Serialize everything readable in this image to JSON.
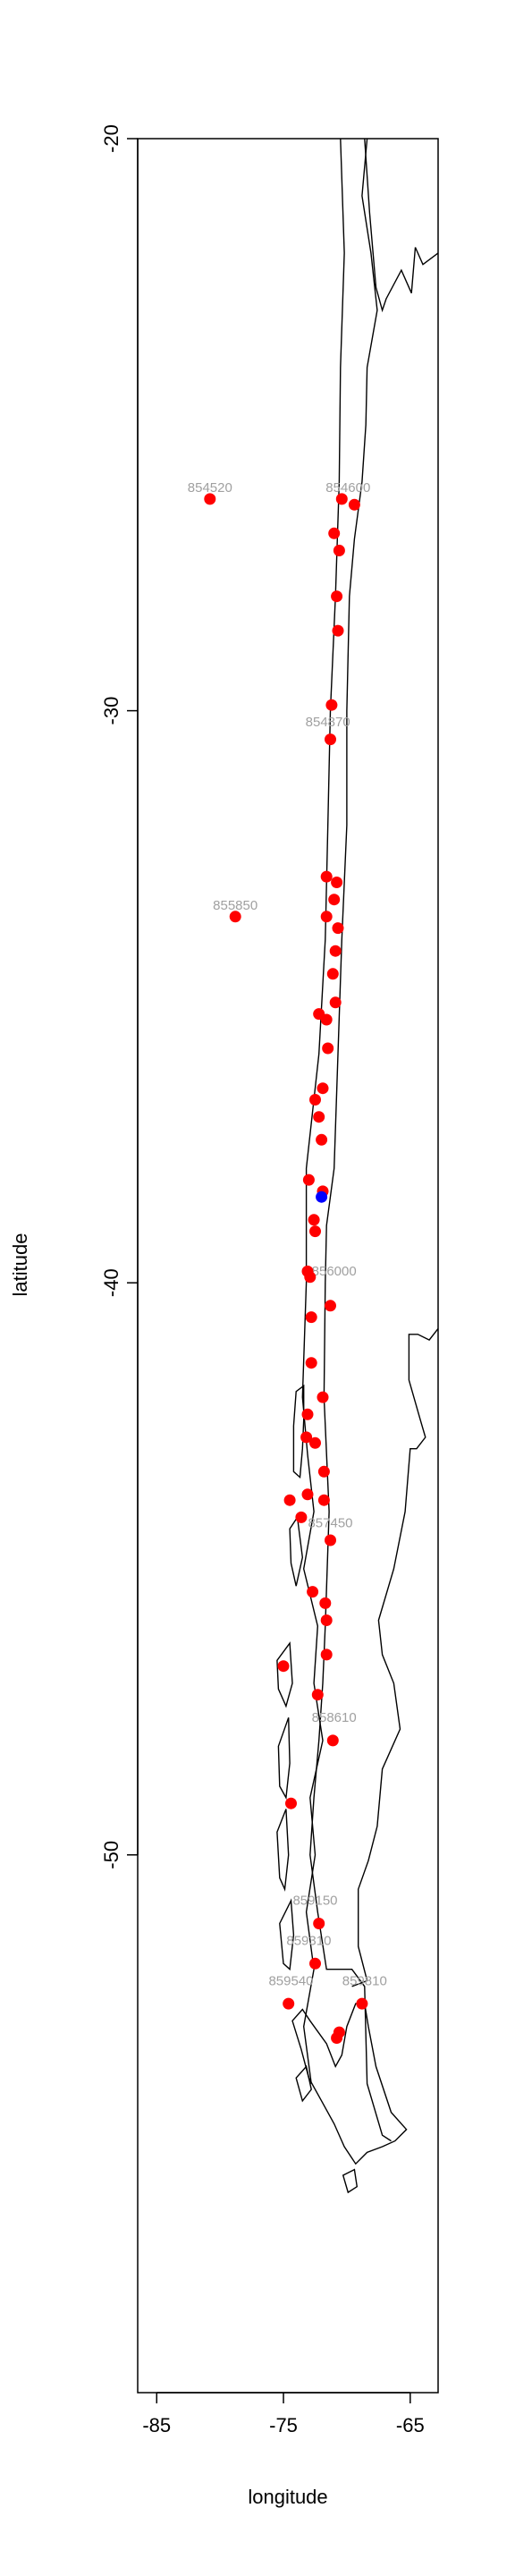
{
  "chart_data": {
    "type": "scatter",
    "title": "",
    "xlabel": "longitude",
    "ylabel": "latitude",
    "xlim": [
      -86.5,
      -62.8
    ],
    "ylim": [
      -59.4,
      -20
    ],
    "xticks": [
      -85,
      -75,
      -65
    ],
    "yticks": [
      -20,
      -30,
      -40,
      -50
    ],
    "grid": false,
    "legend": "none",
    "colors": {
      "station": "#ff0000",
      "highlight": "#0000ff",
      "label": "#a0a0a0",
      "outline": "#000000"
    },
    "labeled_stations": [
      {
        "x": -80.8,
        "y": -26.3,
        "label": "854520"
      },
      {
        "x": -69.9,
        "y": -26.3,
        "label": "854600"
      },
      {
        "x": -78.8,
        "y": -33.6,
        "label": "855850"
      },
      {
        "x": -71.5,
        "y": -30.4,
        "label": "854870"
      },
      {
        "x": -71.0,
        "y": -40.0,
        "label": "856000"
      },
      {
        "x": -71.3,
        "y": -44.4,
        "label": "857450"
      },
      {
        "x": -71.0,
        "y": -47.8,
        "label": "858610"
      },
      {
        "x": -72.5,
        "y": -51.0,
        "label": "859150"
      },
      {
        "x": -73.0,
        "y": -51.7,
        "label": "859310"
      },
      {
        "x": -74.4,
        "y": -52.4,
        "label": "859540"
      },
      {
        "x": -68.6,
        "y": -52.4,
        "label": "859810"
      }
    ],
    "stations": [
      {
        "x": -80.8,
        "y": -26.3
      },
      {
        "x": -70.4,
        "y": -26.3
      },
      {
        "x": -69.4,
        "y": -26.4
      },
      {
        "x": -71.0,
        "y": -26.9
      },
      {
        "x": -70.6,
        "y": -27.2
      },
      {
        "x": -70.8,
        "y": -28.0
      },
      {
        "x": -70.7,
        "y": -28.6
      },
      {
        "x": -71.2,
        "y": -29.9
      },
      {
        "x": -71.3,
        "y": -30.5
      },
      {
        "x": -71.6,
        "y": -32.9
      },
      {
        "x": -70.8,
        "y": -33.0
      },
      {
        "x": -71.0,
        "y": -33.3
      },
      {
        "x": -78.8,
        "y": -33.6
      },
      {
        "x": -71.6,
        "y": -33.6
      },
      {
        "x": -70.7,
        "y": -33.8
      },
      {
        "x": -70.9,
        "y": -34.2
      },
      {
        "x": -71.1,
        "y": -34.6
      },
      {
        "x": -70.9,
        "y": -35.1
      },
      {
        "x": -72.2,
        "y": -35.3
      },
      {
        "x": -71.6,
        "y": -35.4
      },
      {
        "x": -71.5,
        "y": -35.9
      },
      {
        "x": -71.9,
        "y": -36.6
      },
      {
        "x": -72.5,
        "y": -36.8
      },
      {
        "x": -72.2,
        "y": -37.1
      },
      {
        "x": -72.0,
        "y": -37.5
      },
      {
        "x": -73.0,
        "y": -38.2
      },
      {
        "x": -71.9,
        "y": -38.4
      },
      {
        "x": -72.6,
        "y": -38.9
      },
      {
        "x": -72.5,
        "y": -39.1
      },
      {
        "x": -73.1,
        "y": -39.8
      },
      {
        "x": -72.9,
        "y": -39.9
      },
      {
        "x": -72.8,
        "y": -40.6
      },
      {
        "x": -71.3,
        "y": -40.4
      },
      {
        "x": -72.8,
        "y": -41.4
      },
      {
        "x": -71.9,
        "y": -42.0
      },
      {
        "x": -73.1,
        "y": -42.3
      },
      {
        "x": -73.2,
        "y": -42.7
      },
      {
        "x": -72.5,
        "y": -42.8
      },
      {
        "x": -71.8,
        "y": -43.3
      },
      {
        "x": -73.1,
        "y": -43.7
      },
      {
        "x": -71.8,
        "y": -43.8
      },
      {
        "x": -74.5,
        "y": -43.8
      },
      {
        "x": -73.6,
        "y": -44.1
      },
      {
        "x": -71.3,
        "y": -44.5
      },
      {
        "x": -72.7,
        "y": -45.4
      },
      {
        "x": -71.7,
        "y": -45.6
      },
      {
        "x": -71.6,
        "y": -45.9
      },
      {
        "x": -75.0,
        "y": -46.7
      },
      {
        "x": -71.6,
        "y": -46.5
      },
      {
        "x": -72.3,
        "y": -47.2
      },
      {
        "x": -71.1,
        "y": -48.0
      },
      {
        "x": -74.4,
        "y": -49.1
      },
      {
        "x": -72.2,
        "y": -51.2
      },
      {
        "x": -72.5,
        "y": -51.9
      },
      {
        "x": -74.6,
        "y": -52.6
      },
      {
        "x": -68.8,
        "y": -52.6
      },
      {
        "x": -70.8,
        "y": -53.2
      },
      {
        "x": -70.6,
        "y": -53.1
      }
    ],
    "highlight": [
      {
        "x": -72.0,
        "y": -38.5
      }
    ],
    "basemap": {
      "border_west": [
        [
          -70.5,
          -20
        ],
        [
          -70.2,
          -22
        ],
        [
          -70.5,
          -24
        ],
        [
          -70.6,
          -26
        ],
        [
          -70.9,
          -28
        ],
        [
          -71.3,
          -30
        ],
        [
          -71.5,
          -32
        ],
        [
          -71.7,
          -34
        ],
        [
          -72.2,
          -36
        ],
        [
          -73.2,
          -38
        ],
        [
          -73.2,
          -40
        ],
        [
          -73.5,
          -42
        ],
        [
          -73.1,
          -43
        ],
        [
          -72.6,
          -44
        ],
        [
          -73.4,
          -45
        ],
        [
          -72.3,
          -46
        ],
        [
          -72.6,
          -47
        ],
        [
          -71.9,
          -48
        ],
        [
          -72.9,
          -49
        ],
        [
          -72.5,
          -50
        ],
        [
          -73.2,
          -51
        ],
        [
          -72.6,
          -52
        ],
        [
          -73.4,
          -53
        ],
        [
          -72.8,
          -54
        ]
      ],
      "border_east": [
        [
          -68.4,
          -20
        ],
        [
          -68.8,
          -21
        ],
        [
          -68.1,
          -22
        ],
        [
          -67.6,
          -23
        ],
        [
          -68.4,
          -24
        ],
        [
          -68.5,
          -25
        ],
        [
          -68.8,
          -26
        ],
        [
          -69.4,
          -27
        ],
        [
          -69.8,
          -28
        ],
        [
          -70.0,
          -30
        ],
        [
          -70.0,
          -32
        ],
        [
          -70.2,
          -33
        ],
        [
          -70.4,
          -34
        ],
        [
          -70.7,
          -36
        ],
        [
          -71.0,
          -38
        ],
        [
          -71.6,
          -39
        ],
        [
          -71.7,
          -40
        ],
        [
          -71.8,
          -42
        ],
        [
          -71.4,
          -44
        ],
        [
          -71.7,
          -46
        ],
        [
          -71.9,
          -47
        ],
        [
          -72.2,
          -48
        ],
        [
          -72.6,
          -49
        ],
        [
          -72.9,
          -50
        ],
        [
          -72.3,
          -51
        ],
        [
          -71.6,
          -52
        ],
        [
          -69.6,
          -52
        ],
        [
          -68.6,
          -52.3
        ],
        [
          -68.4,
          -54
        ],
        [
          -67.2,
          -54.9
        ],
        [
          -66.5,
          -55
        ]
      ],
      "argentina_coast": [
        [
          -62.8,
          -22
        ],
        [
          -64,
          -22.2
        ],
        [
          -64.6,
          -21.9
        ],
        [
          -64.9,
          -22.7
        ],
        [
          -65.7,
          -22.3
        ],
        [
          -66.9,
          -22.8
        ],
        [
          -67.2,
          -23
        ],
        [
          -67.7,
          -22.6
        ],
        [
          -68.2,
          -21.3
        ],
        [
          -68.6,
          -20
        ]
      ],
      "patagonia_coast": [
        [
          -62.8,
          -40.8
        ],
        [
          -63.5,
          -41
        ],
        [
          -64.4,
          -40.9
        ],
        [
          -65.1,
          -40.9
        ],
        [
          -65.1,
          -41.7
        ],
        [
          -64.2,
          -42.4
        ],
        [
          -63.8,
          -42.7
        ],
        [
          -64.5,
          -42.9
        ],
        [
          -65.0,
          -42.9
        ],
        [
          -65.4,
          -44.0
        ],
        [
          -66.3,
          -45
        ],
        [
          -67.5,
          -45.9
        ],
        [
          -67.2,
          -46.5
        ],
        [
          -66.3,
          -47
        ],
        [
          -65.8,
          -47.8
        ],
        [
          -67.2,
          -48.5
        ],
        [
          -67.6,
          -49.5
        ],
        [
          -68.3,
          -50.1
        ],
        [
          -69.1,
          -50.6
        ],
        [
          -69.1,
          -51.6
        ],
        [
          -68.4,
          -52.2
        ],
        [
          -69.6,
          -52.3
        ]
      ],
      "tierra_del_fuego": [
        [
          -68.6,
          -52.6
        ],
        [
          -68.3,
          -53
        ],
        [
          -67.7,
          -53.7
        ],
        [
          -66.5,
          -54.5
        ],
        [
          -65.3,
          -54.8
        ],
        [
          -66.2,
          -55
        ],
        [
          -67.2,
          -55.1
        ],
        [
          -68.4,
          -55.2
        ],
        [
          -69.3,
          -55.4
        ],
        [
          -70.2,
          -55.1
        ],
        [
          -71.0,
          -54.7
        ],
        [
          -72.0,
          -54.3
        ],
        [
          -73.0,
          -53.9
        ],
        [
          -73.6,
          -53.4
        ],
        [
          -74.3,
          -52.9
        ],
        [
          -73.5,
          -52.7
        ],
        [
          -72.9,
          -52.9
        ],
        [
          -71.6,
          -53.3
        ],
        [
          -70.9,
          -53.7
        ],
        [
          -70.4,
          -53.5
        ],
        [
          -70.0,
          -53.0
        ],
        [
          -69.3,
          -52.6
        ],
        [
          -68.6,
          -52.6
        ]
      ],
      "islands": [
        [
          [
            -73.4,
            -41.8
          ],
          [
            -74.0,
            -41.9
          ],
          [
            -74.2,
            -42.5
          ],
          [
            -74.2,
            -43.3
          ],
          [
            -73.7,
            -43.4
          ],
          [
            -73.5,
            -42.9
          ],
          [
            -73.4,
            -42.4
          ],
          [
            -73.4,
            -41.8
          ]
        ],
        [
          [
            -73.9,
            -44.1
          ],
          [
            -74.5,
            -44.3
          ],
          [
            -74.4,
            -44.9
          ],
          [
            -74.0,
            -45.3
          ],
          [
            -73.5,
            -44.8
          ],
          [
            -73.9,
            -44.1
          ]
        ],
        [
          [
            -74.5,
            -46.3
          ],
          [
            -75.5,
            -46.6
          ],
          [
            -75.4,
            -47.1
          ],
          [
            -74.8,
            -47.4
          ],
          [
            -74.3,
            -47.0
          ],
          [
            -74.5,
            -46.3
          ]
        ],
        [
          [
            -74.6,
            -47.6
          ],
          [
            -75.4,
            -48.1
          ],
          [
            -75.3,
            -48.8
          ],
          [
            -74.8,
            -49.0
          ],
          [
            -74.5,
            -48.4
          ],
          [
            -74.6,
            -47.6
          ]
        ],
        [
          [
            -74.8,
            -49.2
          ],
          [
            -75.5,
            -49.6
          ],
          [
            -75.3,
            -50.4
          ],
          [
            -74.9,
            -50.6
          ],
          [
            -74.6,
            -50.0
          ],
          [
            -74.8,
            -49.2
          ]
        ],
        [
          [
            -74.4,
            -50.8
          ],
          [
            -75.3,
            -51.2
          ],
          [
            -75.0,
            -51.9
          ],
          [
            -74.5,
            -52.0
          ],
          [
            -74.2,
            -51.4
          ],
          [
            -74.4,
            -50.8
          ]
        ],
        [
          [
            -73.2,
            -53.7
          ],
          [
            -74.0,
            -53.9
          ],
          [
            -73.5,
            -54.3
          ],
          [
            -72.8,
            -54.1
          ],
          [
            -73.2,
            -53.7
          ]
        ],
        [
          [
            -69.4,
            -55.5
          ],
          [
            -70.3,
            -55.6
          ],
          [
            -69.9,
            -55.9
          ],
          [
            -69.2,
            -55.8
          ],
          [
            -69.4,
            -55.5
          ]
        ]
      ]
    }
  }
}
